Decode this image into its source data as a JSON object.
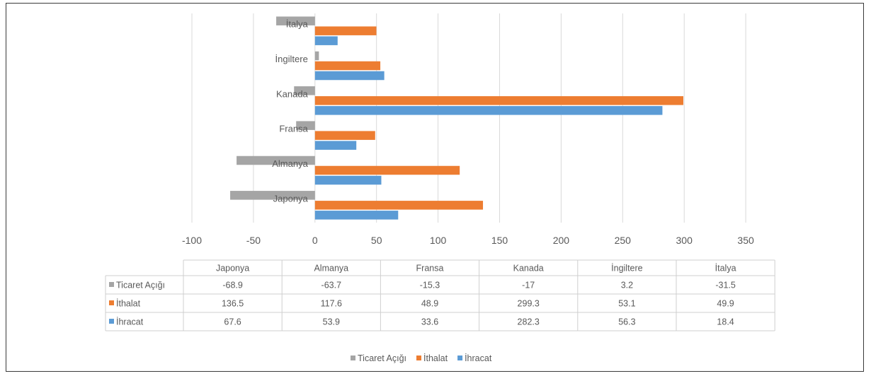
{
  "chart_data": {
    "type": "bar",
    "orientation": "horizontal",
    "categories": [
      "Japonya",
      "Almanya",
      "Fransa",
      "Kanada",
      "İngiltere",
      "İtalya"
    ],
    "series": [
      {
        "name": "Ticaret Açığı",
        "color": "#a5a5a5",
        "values": [
          -68.9,
          -63.7,
          -15.3,
          -17,
          3.2,
          -31.5
        ]
      },
      {
        "name": "İthalat",
        "color": "#ed7d31",
        "values": [
          136.5,
          117.6,
          48.9,
          299.3,
          53.1,
          49.9
        ]
      },
      {
        "name": "İhracat",
        "color": "#5b9bd5",
        "values": [
          67.6,
          53.9,
          33.6,
          282.3,
          56.3,
          18.4
        ]
      }
    ],
    "xlim": [
      -100,
      350
    ],
    "xticks": [
      "-100",
      "-50",
      "0",
      "50",
      "100",
      "150",
      "200",
      "250",
      "300",
      "350"
    ],
    "grid": true,
    "data_table": true,
    "legend_position": "bottom",
    "legend": [
      "Ticaret Açığı",
      "İthalat",
      "İhracat"
    ],
    "table_rows": [
      {
        "label": "Ticaret Açığı",
        "color": "#a5a5a5",
        "cells": [
          "-68.9",
          "-63.7",
          "-15.3",
          "-17",
          "3.2",
          "-31.5"
        ]
      },
      {
        "label": "İthalat",
        "color": "#ed7d31",
        "cells": [
          "136.5",
          "117.6",
          "48.9",
          "299.3",
          "53.1",
          "49.9"
        ]
      },
      {
        "label": "İhracat",
        "color": "#5b9bd5",
        "cells": [
          "67.6",
          "53.9",
          "33.6",
          "282.3",
          "56.3",
          "18.4"
        ]
      }
    ]
  }
}
